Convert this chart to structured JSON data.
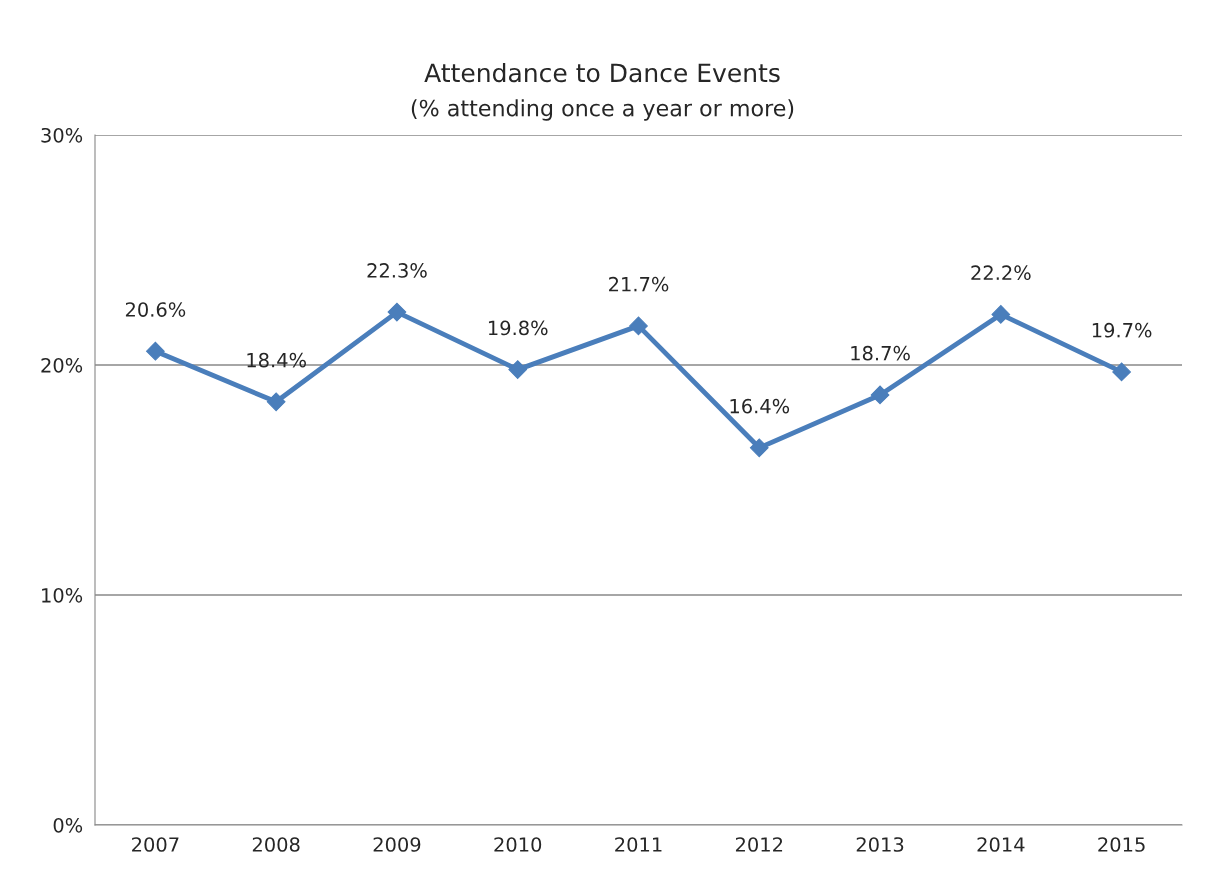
{
  "chart_data": {
    "type": "line",
    "title": "Attendance to Dance Events",
    "subtitle": "(% attending once a year or more)",
    "categories": [
      "2007",
      "2008",
      "2009",
      "2010",
      "2011",
      "2012",
      "2013",
      "2014",
      "2015"
    ],
    "series": [
      {
        "color": "#4a7ebb",
        "values": [
          20.6,
          18.4,
          22.3,
          19.8,
          21.7,
          16.4,
          18.7,
          22.2,
          19.7
        ],
        "value_labels": [
          "20.6%",
          "18.4%",
          "22.3%",
          "19.8%",
          "21.7%",
          "16.4%",
          "18.7%",
          "22.2%",
          "19.7%"
        ]
      }
    ],
    "ylim": [
      0,
      30
    ],
    "yticks": [
      {
        "value": 0,
        "label": "0%"
      },
      {
        "value": 10,
        "label": "10%"
      },
      {
        "value": 20,
        "label": "20%"
      },
      {
        "value": 30,
        "label": "30%"
      }
    ],
    "grid": "y",
    "marker": "diamond",
    "line_style": "solid"
  }
}
